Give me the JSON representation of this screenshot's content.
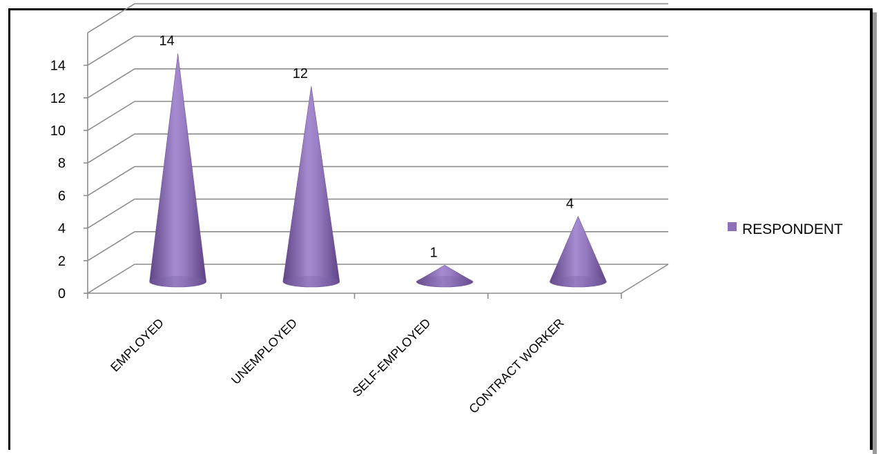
{
  "chart_data": {
    "type": "bar",
    "shape": "cone",
    "categories": [
      "EMPLOYED",
      "UNEMPLOYED",
      "SELF-EMPLOYED",
      "CONTRACT WORKER"
    ],
    "series": [
      {
        "name": "RESPONDENT",
        "values": [
          14,
          12,
          1,
          4
        ],
        "color": "#8e70b8"
      }
    ],
    "ylim": [
      0,
      14
    ],
    "yticks": [
      0,
      2,
      4,
      6,
      8,
      10,
      12,
      14
    ],
    "grid": true,
    "legend_position": "right",
    "data_labels": true
  }
}
